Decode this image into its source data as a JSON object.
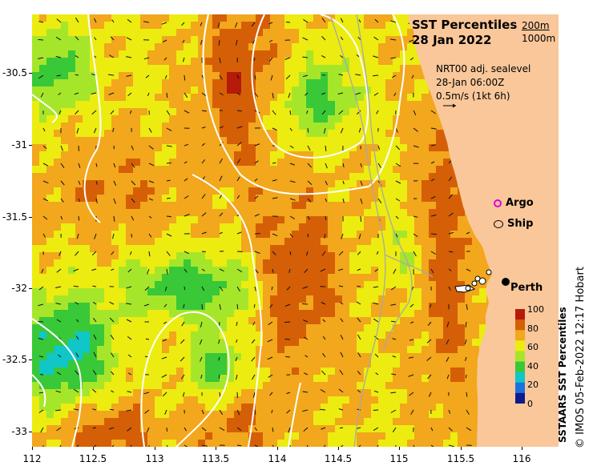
{
  "title": {
    "line1": "SST Percentiles",
    "line2": "28 Jan 2022"
  },
  "depth_legend": {
    "a": "200m",
    "b": "1000m"
  },
  "current_info": {
    "line1": "NRT00 adj. sealevel",
    "line2": "28-Jan 06:00Z",
    "line3": "0.5m/s (1kt 6h)"
  },
  "markers": {
    "argo": "Argo",
    "ship": "Ship",
    "city": "Perth"
  },
  "colorbar": {
    "label": "SSTAARS SST Percentiles",
    "ticks": [
      "100",
      "80",
      "60",
      "40",
      "20",
      "0"
    ]
  },
  "credit": "© IMOS 05-Feb-2022 12:17 Hobart",
  "axes": {
    "x_ticks": [
      "112",
      "112.5",
      "113",
      "113.5",
      "114",
      "114.5",
      "115",
      "115.5",
      "116"
    ],
    "y_ticks": [
      "-30.5",
      "-31",
      "-31.5",
      "-32",
      "-32.5",
      "-33"
    ]
  },
  "colors": {
    "land": "#f9c79a",
    "percentile_bins": [
      "#0b1a8c",
      "#1e6fe0",
      "#10c6c6",
      "#38c838",
      "#a6e62a",
      "#ecec10",
      "#f2a71c",
      "#d55f06",
      "#b51a0a"
    ],
    "contour_200m": "#a8a8a8",
    "argo": "#e000e0"
  }
}
